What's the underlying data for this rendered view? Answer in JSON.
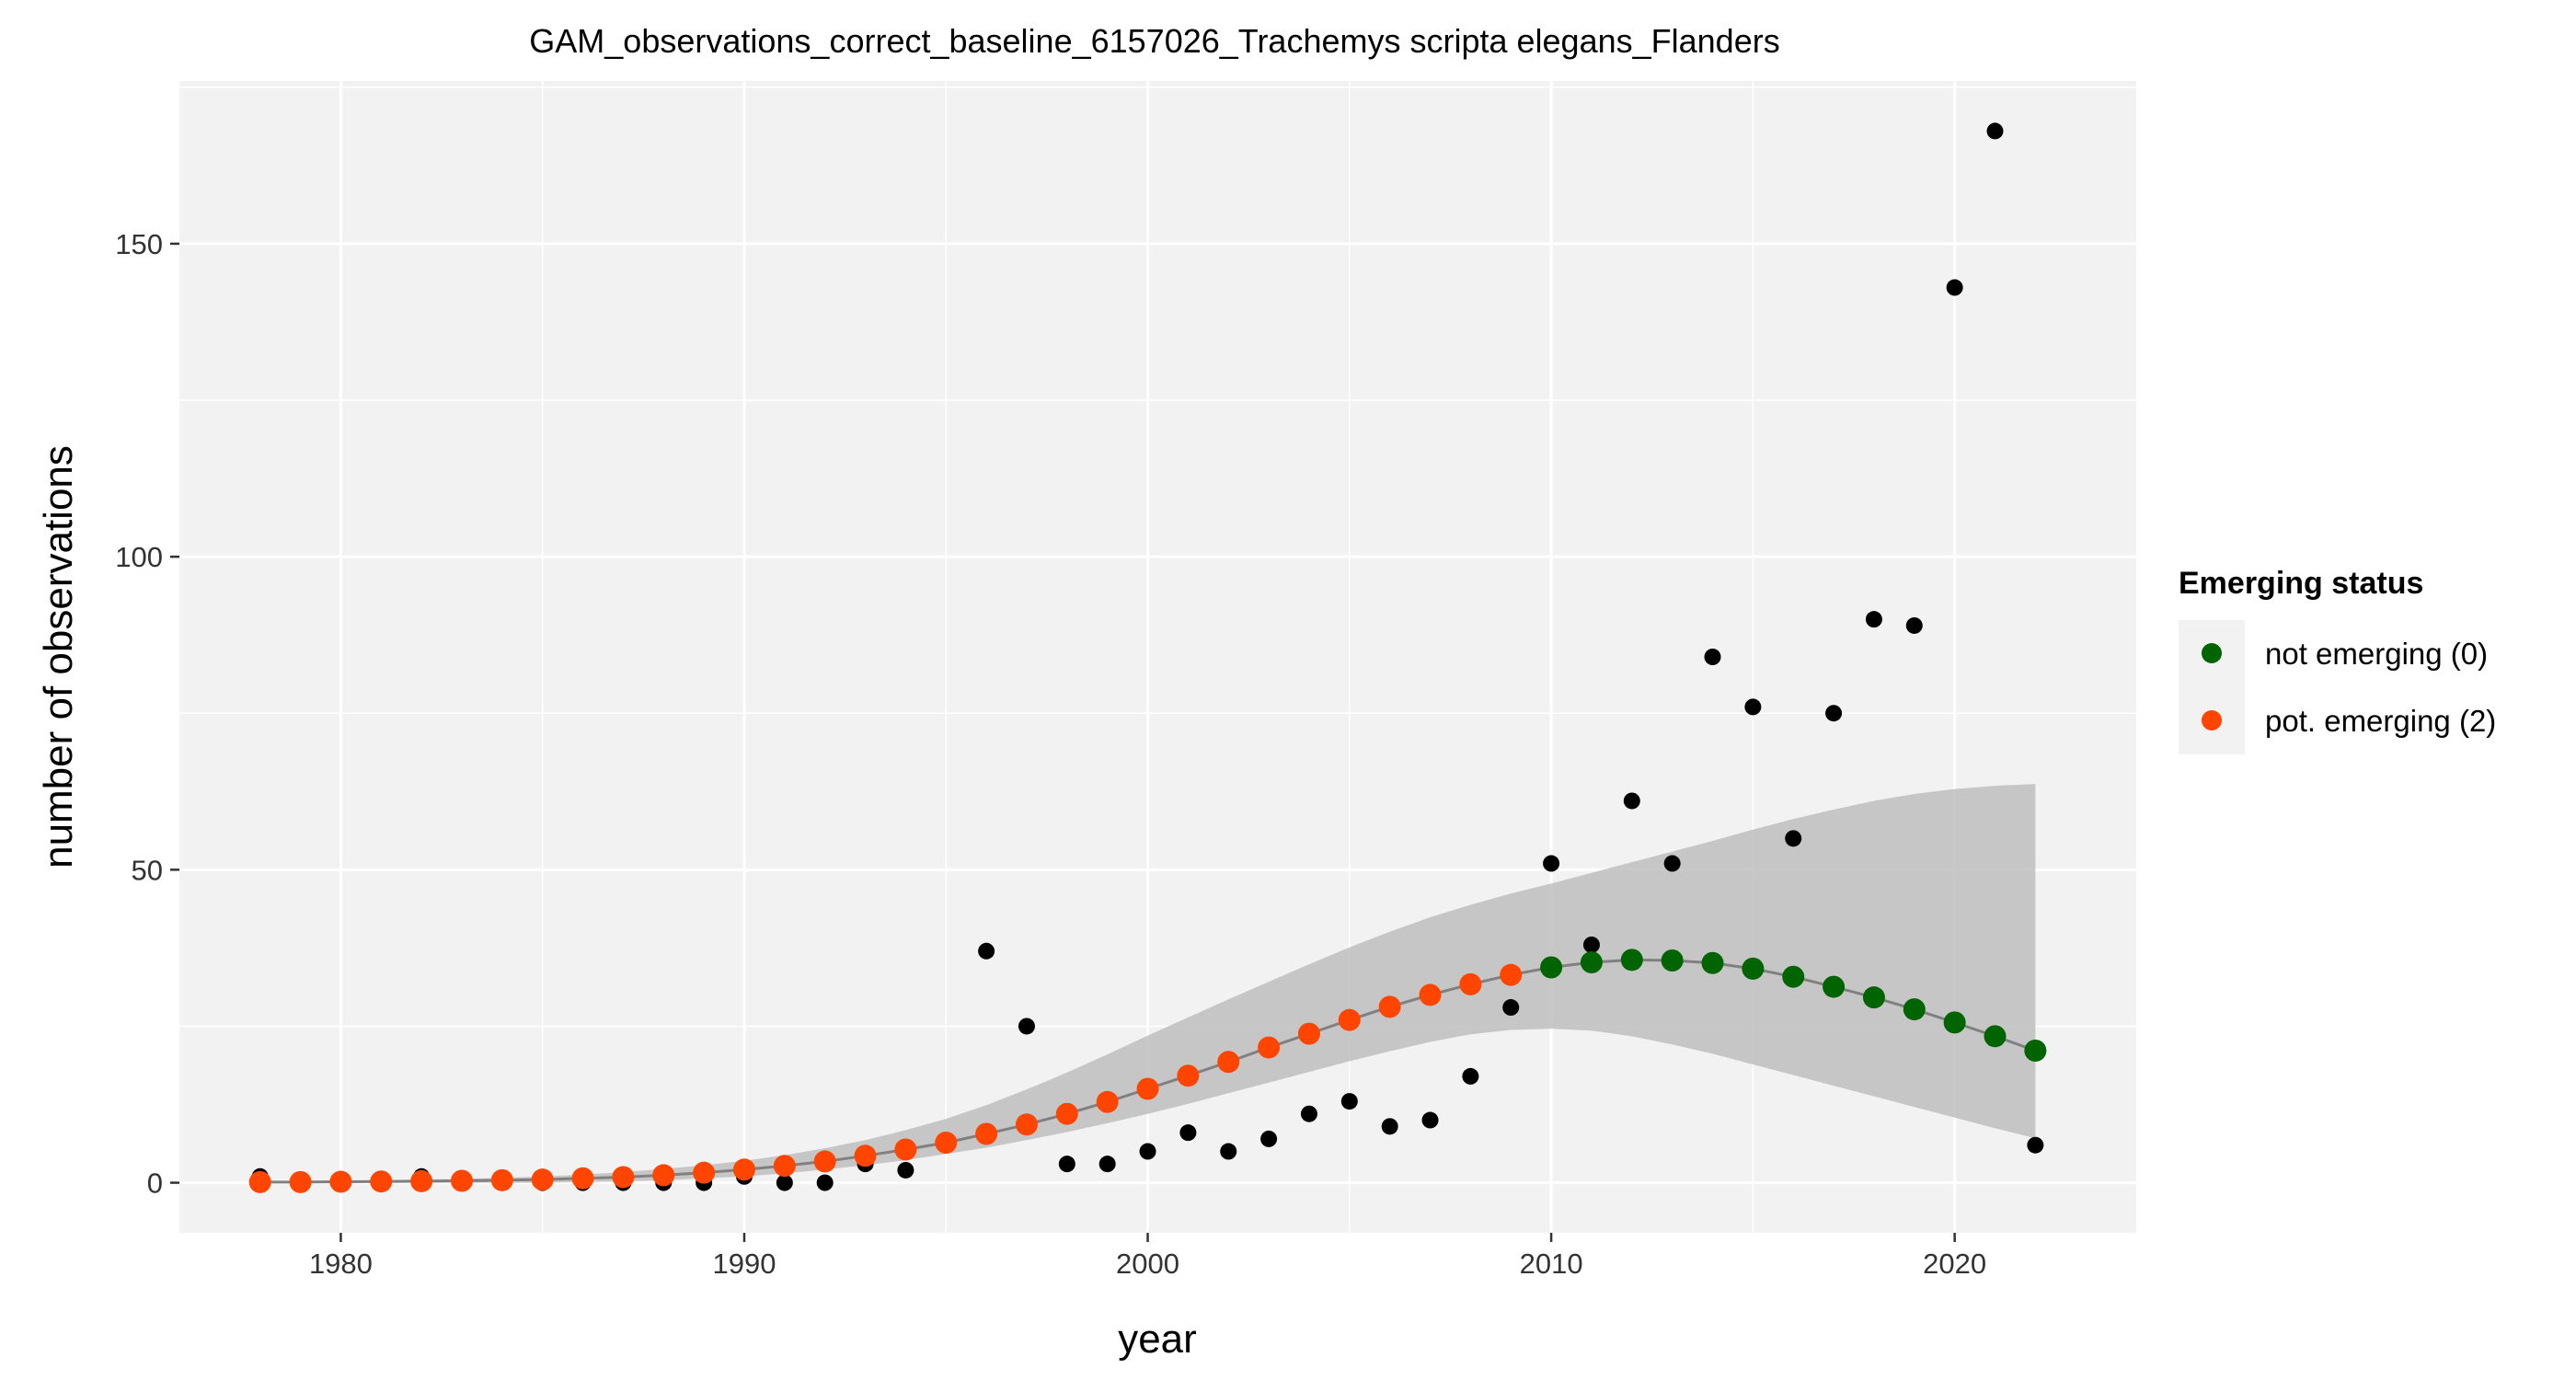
{
  "chart_data": {
    "type": "scatter",
    "title": "GAM_observations_correct_baseline_6157026_Trachemys scripta elegans_Flanders",
    "xlabel": "year",
    "ylabel": "number of observations",
    "xlim": [
      1976,
      2024.5
    ],
    "ylim": [
      -8,
      176
    ],
    "x_ticks": [
      1980,
      1990,
      2000,
      2010,
      2020
    ],
    "y_ticks": [
      0,
      50,
      100,
      150
    ],
    "grid": true,
    "legend": {
      "title": "Emerging status",
      "position": "right",
      "entries": [
        {
          "label": "not emerging (0)",
          "color": "#006400"
        },
        {
          "label": "pot. emerging (2)",
          "color": "#FF4500"
        }
      ]
    },
    "colors": {
      "panel": "#F2F2F2",
      "grid": "#FFFFFF",
      "ribbon": "#BEBEBE",
      "fit_line": "#808080",
      "observed": "#000000"
    },
    "observed": {
      "x": [
        1978,
        1979,
        1980,
        1981,
        1982,
        1983,
        1984,
        1985,
        1986,
        1987,
        1988,
        1989,
        1990,
        1991,
        1992,
        1993,
        1994,
        1995,
        1996,
        1997,
        1998,
        1999,
        2000,
        2001,
        2002,
        2003,
        2004,
        2005,
        2006,
        2007,
        2008,
        2009,
        2010,
        2011,
        2012,
        2013,
        2014,
        2015,
        2016,
        2017,
        2018,
        2019,
        2020,
        2021,
        2022
      ],
      "y": [
        1,
        0,
        0,
        0,
        1,
        0,
        0,
        0,
        0,
        0,
        0,
        0,
        1,
        0,
        0,
        3,
        2,
        6,
        37,
        25,
        3,
        3,
        5,
        8,
        5,
        7,
        11,
        13,
        9,
        10,
        17,
        28,
        51,
        38,
        61,
        51,
        84,
        76,
        55,
        75,
        90,
        89,
        143,
        168,
        6
      ]
    },
    "fit": {
      "x": [
        1978,
        1979,
        1980,
        1981,
        1982,
        1983,
        1984,
        1985,
        1986,
        1987,
        1988,
        1989,
        1990,
        1991,
        1992,
        1993,
        1994,
        1995,
        1996,
        1997,
        1998,
        1999,
        2000,
        2001,
        2002,
        2003,
        2004,
        2005,
        2006,
        2007,
        2008,
        2009,
        2010,
        2011,
        2012,
        2013,
        2014,
        2015,
        2016,
        2017,
        2018,
        2019,
        2020,
        2021,
        2022
      ],
      "y": [
        0.1,
        0.1,
        0.15,
        0.2,
        0.25,
        0.3,
        0.4,
        0.5,
        0.7,
        0.9,
        1.2,
        1.6,
        2.1,
        2.7,
        3.4,
        4.3,
        5.3,
        6.4,
        7.8,
        9.3,
        11,
        12.9,
        15,
        17.1,
        19.3,
        21.6,
        23.8,
        26,
        28.1,
        30,
        31.7,
        33.2,
        34.4,
        35.2,
        35.6,
        35.5,
        35.1,
        34.2,
        32.9,
        31.3,
        29.6,
        27.7,
        25.6,
        23.4,
        21.1
      ],
      "status": [
        2,
        2,
        2,
        2,
        2,
        2,
        2,
        2,
        2,
        2,
        2,
        2,
        2,
        2,
        2,
        2,
        2,
        2,
        2,
        2,
        2,
        2,
        2,
        2,
        2,
        2,
        2,
        2,
        2,
        2,
        2,
        2,
        0,
        0,
        0,
        0,
        0,
        0,
        0,
        0,
        0,
        0,
        0,
        0,
        0
      ],
      "lower": [
        0,
        0,
        0,
        0,
        0,
        0,
        0,
        0,
        0.1,
        0.2,
        0.4,
        0.7,
        1,
        1.5,
        2.1,
        2.8,
        3.6,
        4.6,
        5.6,
        6.8,
        8.1,
        9.5,
        11,
        12.6,
        14.3,
        16,
        17.7,
        19.4,
        21,
        22.5,
        23.7,
        24.4,
        24.6,
        24.3,
        23.4,
        22.1,
        20.6,
        18.9,
        17.2,
        15.5,
        13.8,
        12.1,
        10.4,
        8.7,
        7.1
      ],
      "upper": [
        0.2,
        0.3,
        0.35,
        0.4,
        0.5,
        0.6,
        0.8,
        1,
        1.3,
        1.7,
        2.2,
        2.8,
        3.5,
        4.4,
        5.5,
        6.8,
        8.4,
        10.2,
        12.4,
        14.9,
        17.6,
        20.5,
        23.5,
        26.4,
        29.3,
        32.1,
        34.9,
        37.6,
        40.1,
        42.4,
        44.4,
        46.2,
        47.8,
        49.5,
        51.2,
        52.9,
        54.6,
        56.4,
        58.1,
        59.6,
        61,
        62.1,
        62.9,
        63.4,
        63.7
      ]
    }
  }
}
